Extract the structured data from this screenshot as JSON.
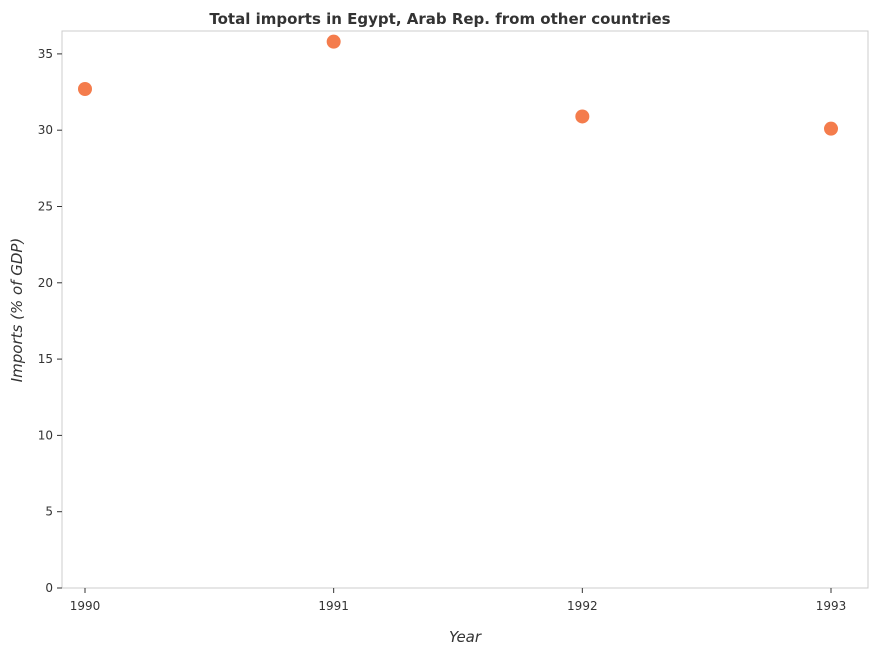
{
  "chart_data": {
    "type": "scatter",
    "title": "Total imports in Egypt, Arab Rep. from other countries",
    "xlabel": "Year",
    "ylabel": "Imports (% of GDP)",
    "categories": [
      "1990",
      "1991",
      "1992",
      "1993"
    ],
    "values": [
      32.7,
      35.8,
      30.9,
      30.1
    ],
    "ylim": [
      0,
      36.5
    ],
    "yticks": [
      0,
      5,
      10,
      15,
      20,
      25,
      30,
      35
    ],
    "grid": false,
    "legend": "none",
    "marker_color": "#f47c4c"
  }
}
